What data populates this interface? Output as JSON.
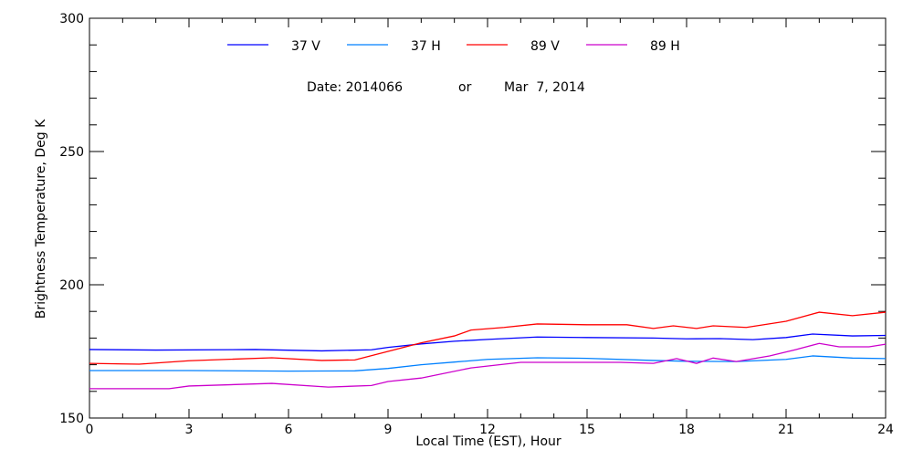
{
  "chart_data": {
    "type": "line",
    "title": "",
    "subtitle_parts": [
      "Date: 2014066",
      "or",
      "Mar  7, 2014"
    ],
    "xlabel": "Local Time (EST), Hour",
    "ylabel": "Brightness Temperature, Deg K",
    "xlim": [
      0,
      24
    ],
    "ylim": [
      150,
      300
    ],
    "xticks": [
      0,
      3,
      6,
      9,
      12,
      15,
      18,
      21,
      24
    ],
    "yticks": [
      150,
      200,
      250,
      300
    ],
    "x_minor_step": 1,
    "y_minor_step": 10,
    "grid": false,
    "legend_placement": "top",
    "series": [
      {
        "name": "37 V",
        "color": "#0000ff",
        "points": [
          [
            0,
            175.7
          ],
          [
            2,
            175.5
          ],
          [
            5,
            175.7
          ],
          [
            7,
            175.2
          ],
          [
            8.5,
            175.6
          ],
          [
            9,
            176.5
          ],
          [
            10,
            177.8
          ],
          [
            11,
            178.8
          ],
          [
            12,
            179.5
          ],
          [
            13.5,
            180.4
          ],
          [
            15,
            180.2
          ],
          [
            17,
            180
          ],
          [
            18,
            179.7
          ],
          [
            19,
            179.8
          ],
          [
            20,
            179.4
          ],
          [
            21,
            180.2
          ],
          [
            21.8,
            181.5
          ],
          [
            23,
            180.8
          ],
          [
            24,
            181
          ]
        ]
      },
      {
        "name": "37 H",
        "color": "#0080ff",
        "points": [
          [
            0,
            167.8
          ],
          [
            3,
            167.8
          ],
          [
            6,
            167.6
          ],
          [
            8,
            167.7
          ],
          [
            9,
            168.6
          ],
          [
            10,
            170
          ],
          [
            11,
            171
          ],
          [
            12,
            172
          ],
          [
            13.5,
            172.6
          ],
          [
            15,
            172.4
          ],
          [
            17,
            171.6
          ],
          [
            18,
            171.3
          ],
          [
            19.5,
            171.2
          ],
          [
            21,
            172
          ],
          [
            21.8,
            173.3
          ],
          [
            23,
            172.5
          ],
          [
            24,
            172.3
          ]
        ]
      },
      {
        "name": "89 V",
        "color": "#ff0000",
        "points": [
          [
            0,
            170.5
          ],
          [
            1.5,
            170.2
          ],
          [
            3,
            171.5
          ],
          [
            5.5,
            172.6
          ],
          [
            7,
            171.6
          ],
          [
            8,
            171.8
          ],
          [
            9,
            175
          ],
          [
            10,
            178.2
          ],
          [
            11,
            180.8
          ],
          [
            11.5,
            183
          ],
          [
            12.5,
            184
          ],
          [
            13.5,
            185.3
          ],
          [
            15,
            185
          ],
          [
            16.2,
            185
          ],
          [
            17,
            183.6
          ],
          [
            17.6,
            184.6
          ],
          [
            18.3,
            183.6
          ],
          [
            18.8,
            184.6
          ],
          [
            19.8,
            184
          ],
          [
            21,
            186.3
          ],
          [
            22,
            189.7
          ],
          [
            23,
            188.4
          ],
          [
            24,
            189.7
          ]
        ]
      },
      {
        "name": "89 H",
        "color": "#cc00cc",
        "points": [
          [
            0,
            161
          ],
          [
            2.4,
            161
          ],
          [
            3,
            162
          ],
          [
            5.5,
            163
          ],
          [
            7.2,
            161.6
          ],
          [
            8.5,
            162.2
          ],
          [
            9,
            163.7
          ],
          [
            10,
            165
          ],
          [
            11.5,
            168.8
          ],
          [
            13,
            170.9
          ],
          [
            16,
            170.9
          ],
          [
            17,
            170.5
          ],
          [
            17.7,
            172.3
          ],
          [
            18.3,
            170.5
          ],
          [
            18.8,
            172.5
          ],
          [
            19.5,
            171.2
          ],
          [
            20.5,
            173.3
          ],
          [
            21.3,
            175.7
          ],
          [
            22,
            178
          ],
          [
            22.6,
            176.7
          ],
          [
            23.5,
            176.7
          ],
          [
            24,
            177.7
          ]
        ]
      }
    ]
  }
}
